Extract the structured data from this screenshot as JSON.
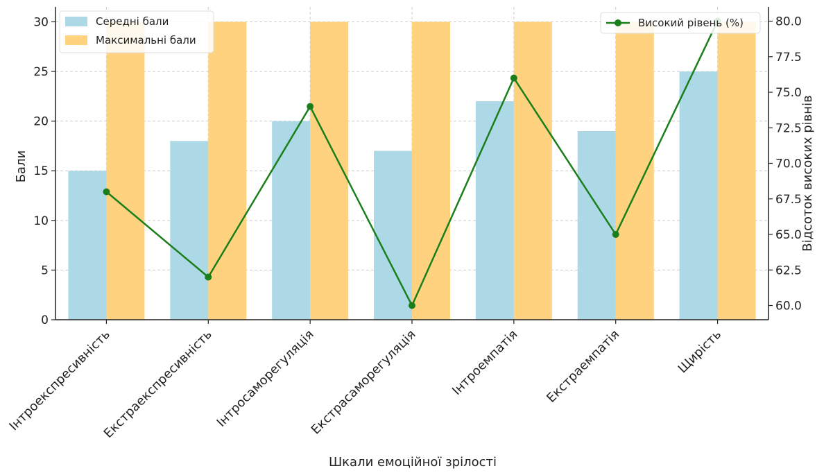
{
  "chart_data": {
    "type": "bar",
    "title": "",
    "xlabel": "Шкали емоційної зрілості",
    "ylabel": "Бали",
    "y2label": "Відсоток високих рівнів",
    "categories": [
      "Інтроекспресивність",
      "Екстраекспресивність",
      "Інтросаморегуляція",
      "Екстрасаморегуляція",
      "Інтроемпатія",
      "Екстраемпатія",
      "Щирість"
    ],
    "series": [
      {
        "name": "Середні бали",
        "type": "bar",
        "axis": "left",
        "color": "#add8e6",
        "values": [
          15,
          18,
          20,
          17,
          22,
          19,
          25
        ]
      },
      {
        "name": "Максимальні бали",
        "type": "bar",
        "axis": "left",
        "color": "#ffd280",
        "values": [
          30,
          30,
          30,
          30,
          30,
          30,
          30
        ]
      },
      {
        "name": "Високий рівень (%)",
        "type": "line",
        "axis": "right",
        "color": "#1a7f1a",
        "values": [
          68,
          62,
          74,
          60,
          76,
          65,
          80
        ]
      }
    ],
    "ylim": [
      0,
      31.5
    ],
    "y2lim": [
      59,
      81
    ],
    "y_ticks": [
      "0",
      "5",
      "10",
      "15",
      "20",
      "25",
      "30"
    ],
    "y2_ticks": [
      "60.0",
      "62.5",
      "65.0",
      "67.5",
      "70.0",
      "72.5",
      "75.0",
      "77.5",
      "80.0"
    ],
    "grid": true,
    "legend_left_placement": "top-left",
    "legend_right_placement": "top-right"
  }
}
